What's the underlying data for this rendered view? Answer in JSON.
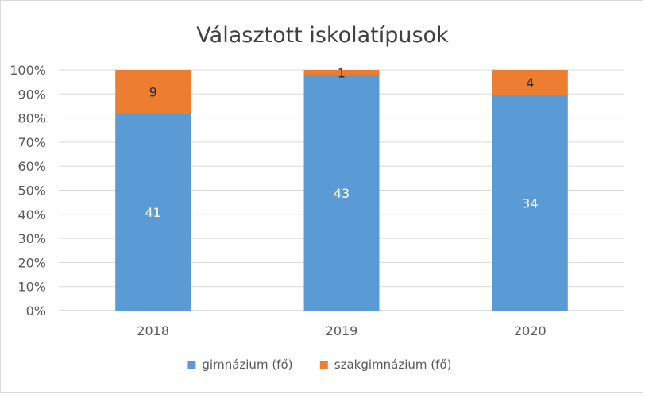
{
  "chart_data": {
    "type": "bar",
    "stacked": "percent",
    "title": "Választott iskolatípusok",
    "xlabel": "",
    "ylabel": "",
    "categories": [
      "2018",
      "2019",
      "2020"
    ],
    "series": [
      {
        "name": "gimnázium (fő)",
        "values": [
          41,
          43,
          34
        ],
        "color": "#5b9bd5"
      },
      {
        "name": "szakgimnázium (fő)",
        "values": [
          9,
          1,
          4
        ],
        "color": "#ed7d31"
      }
    ],
    "ylim": [
      0,
      100
    ],
    "yticks": [
      "0%",
      "10%",
      "20%",
      "30%",
      "40%",
      "50%",
      "60%",
      "70%",
      "80%",
      "90%",
      "100%"
    ],
    "grid": true,
    "legend": "bottom",
    "colors": {
      "gridline": "#d9d9d9",
      "text": "#595959",
      "title": "#404040",
      "label_on_blue": "#ffffff",
      "label_on_orange": "#262626"
    }
  }
}
